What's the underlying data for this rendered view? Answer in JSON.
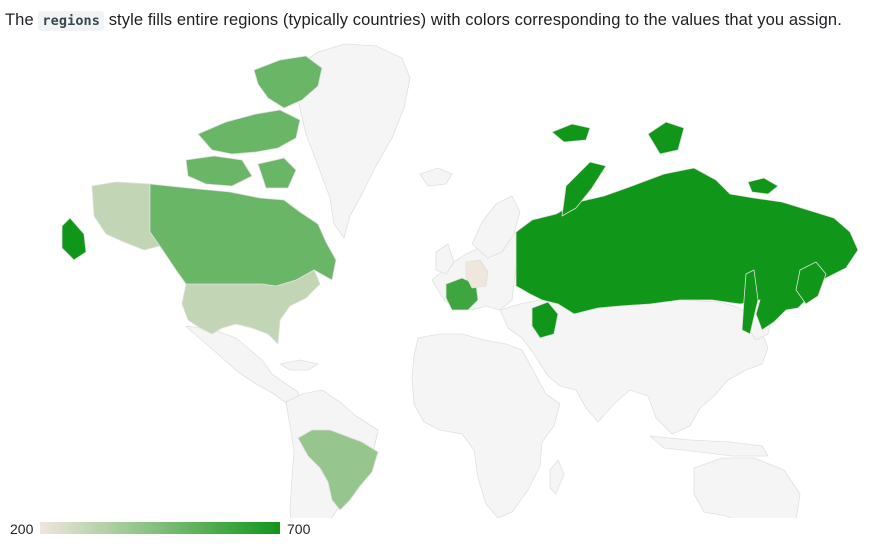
{
  "caption": {
    "prefix": "The",
    "code": "regions",
    "suffix": "style fills entire regions (typically countries) with colors corresponding to the values that you assign."
  },
  "colors": {
    "min_color": "#efe6dc",
    "max_color": "#109618",
    "no_data_fill": "#f5f5f5",
    "stroke": "#e0e0e0"
  },
  "map": {
    "type": "geochart-regions",
    "regions": [
      {
        "name": "Russia",
        "value": 700
      },
      {
        "name": "France",
        "value": 600
      },
      {
        "name": "Canada",
        "value": 500
      },
      {
        "name": "Brazil",
        "value": 400
      },
      {
        "name": "United States",
        "value": 300
      },
      {
        "name": "Germany",
        "value": 200
      }
    ]
  },
  "legend": {
    "min": "200",
    "max": "700"
  }
}
